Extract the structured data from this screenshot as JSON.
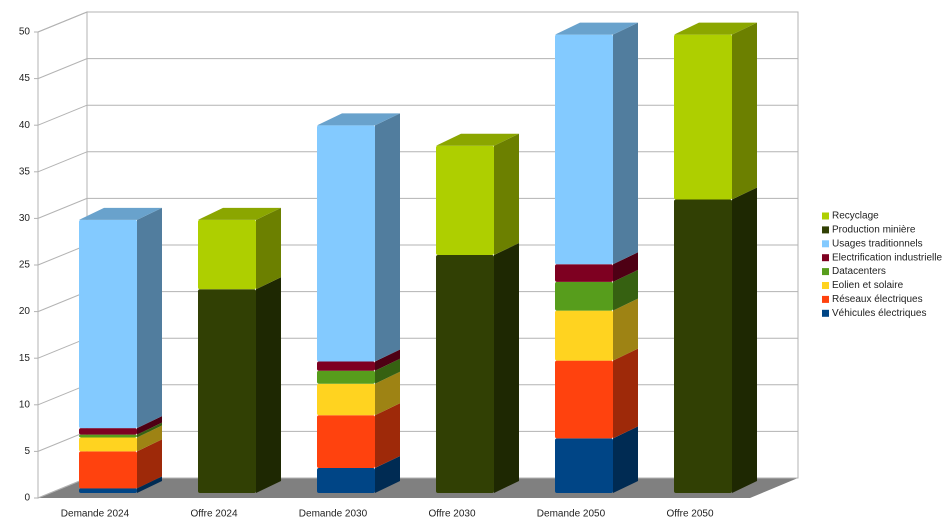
{
  "chart_data": {
    "type": "bar3d",
    "stacked": true,
    "categories": [
      "Demande 2024",
      "Offre 2024",
      "Demande 2030",
      "Offre 2030",
      "Demande 2050",
      "Offre 2050"
    ],
    "series": [
      {
        "name": "Véhicules électriques",
        "color": "#004586",
        "values": [
          0.5,
          null,
          2.7,
          null,
          5.9,
          null
        ]
      },
      {
        "name": "Réseaux électriques",
        "color": "#ff420e",
        "values": [
          4.0,
          null,
          5.7,
          null,
          8.4,
          null
        ]
      },
      {
        "name": "Eolien et solaire",
        "color": "#ffd320",
        "values": [
          1.5,
          null,
          3.4,
          null,
          5.4,
          null
        ]
      },
      {
        "name": "Datacenters",
        "color": "#579d1c",
        "values": [
          0.3,
          null,
          1.4,
          null,
          3.1,
          null
        ]
      },
      {
        "name": "Electrification industrielle",
        "color": "#7e0021",
        "values": [
          0.7,
          null,
          1.0,
          null,
          1.9,
          null
        ]
      },
      {
        "name": "Usages traditionnels",
        "color": "#83caff",
        "values": [
          22.5,
          null,
          25.5,
          null,
          24.8,
          null
        ]
      },
      {
        "name": "Production minière",
        "color": "#314004",
        "values": [
          null,
          22.0,
          null,
          25.7,
          null,
          31.7
        ]
      },
      {
        "name": "Recyclage",
        "color": "#aecf00",
        "values": [
          null,
          7.5,
          null,
          11.8,
          null,
          17.8
        ]
      }
    ],
    "ylim": [
      0,
      50
    ],
    "yticks": [
      0,
      5,
      10,
      15,
      20,
      25,
      30,
      35,
      40,
      45,
      50
    ],
    "grid": true
  }
}
